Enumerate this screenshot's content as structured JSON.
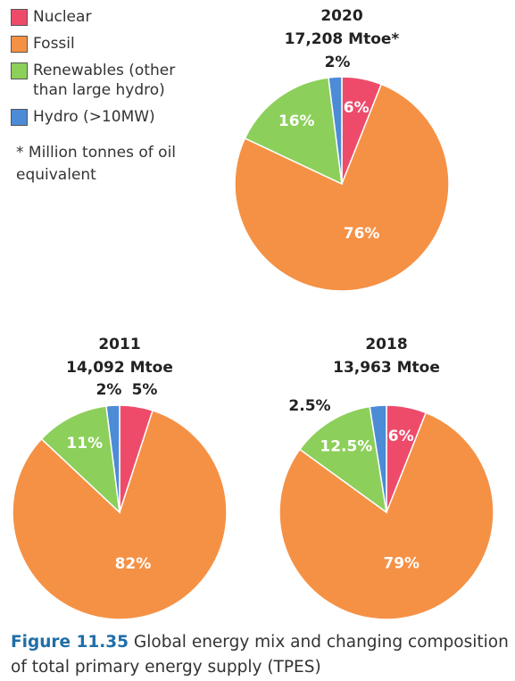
{
  "legend": {
    "categories": [
      "Nuclear",
      "Fossil",
      "Renewables (other than large hydro)",
      "Hydro (>10MW)"
    ],
    "colors": [
      "#ee4b6b",
      "#f59145",
      "#8ccf5a",
      "#4c8bd6"
    ]
  },
  "note": "* Million tonnes of oil equivalent",
  "caption": {
    "label": "Figure 11.35",
    "text": "Global energy mix and changing composition of total primary energy supply (TPES)"
  },
  "chart_data": [
    {
      "type": "pie",
      "title": "2020",
      "subtitle": "17,208 Mtoe*",
      "values": [
        6,
        76,
        16,
        2
      ],
      "value_labels": [
        "6%",
        "76%",
        "16%",
        "2%"
      ]
    },
    {
      "type": "pie",
      "title": "2011",
      "subtitle": "14,092 Mtoe",
      "values": [
        5,
        82,
        11,
        2
      ],
      "value_labels": [
        "5%",
        "82%",
        "11%",
        "2%"
      ]
    },
    {
      "type": "pie",
      "title": "2018",
      "subtitle": "13,963 Mtoe",
      "values": [
        6,
        79,
        12.5,
        2.5
      ],
      "value_labels": [
        "6%",
        "79%",
        "12.5%",
        "2.5%"
      ]
    }
  ]
}
